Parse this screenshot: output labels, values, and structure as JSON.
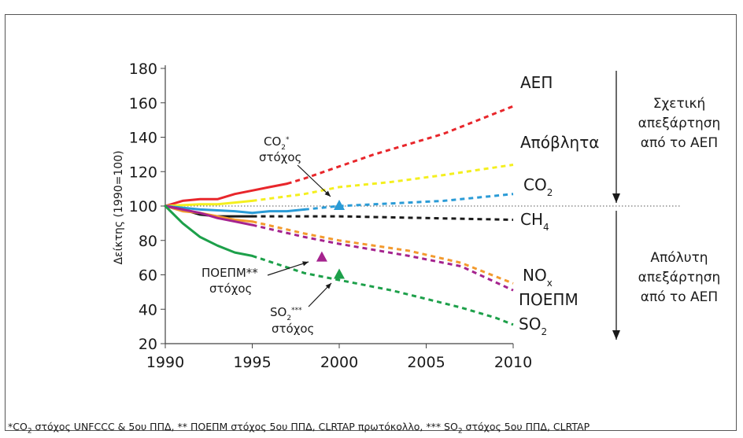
{
  "chart_data": {
    "type": "line",
    "ylabel": "Δείκτης (1990=100)",
    "xlim": [
      1990,
      2010
    ],
    "ylim": [
      20,
      180
    ],
    "x_ticks": [
      "1990",
      "1995",
      "2000",
      "2005",
      "2010"
    ],
    "y_ticks": [
      "20",
      "40",
      "60",
      "80",
      "100",
      "120",
      "140",
      "160",
      "180"
    ],
    "reference_line": {
      "y": 100,
      "style": "dotted"
    },
    "series": [
      {
        "name": "ΑΕΠ",
        "sub": "",
        "color": "#e8262b",
        "points": [
          [
            1990,
            100
          ],
          [
            1991,
            103
          ],
          [
            1992,
            104
          ],
          [
            1993,
            104
          ],
          [
            1994,
            107
          ],
          [
            1995,
            109
          ],
          [
            1996,
            111
          ],
          [
            1997,
            113
          ]
        ],
        "projection": [
          [
            1997,
            113
          ],
          [
            1998,
            116
          ],
          [
            2000,
            123
          ],
          [
            2002,
            130
          ],
          [
            2004,
            136
          ],
          [
            2006,
            142
          ],
          [
            2008,
            150
          ],
          [
            2010,
            158
          ]
        ]
      },
      {
        "name": "Απόβλητα",
        "sub": "",
        "color": "#f4ef1f",
        "points": [
          [
            1990,
            100
          ],
          [
            1992,
            101
          ],
          [
            1993,
            101
          ],
          [
            1994,
            102
          ],
          [
            1995,
            103
          ]
        ],
        "projection": [
          [
            1995,
            103
          ],
          [
            1998,
            107
          ],
          [
            2000,
            111
          ],
          [
            2003,
            114
          ],
          [
            2006,
            118
          ],
          [
            2010,
            124
          ]
        ]
      },
      {
        "name": "CO",
        "sub": "2",
        "color": "#2a9bd6",
        "points": [
          [
            1990,
            100
          ],
          [
            1992,
            98
          ],
          [
            1994,
            97
          ],
          [
            1995,
            96
          ],
          [
            1996,
            97
          ],
          [
            1997,
            97
          ],
          [
            1998,
            98
          ]
        ],
        "projection": [
          [
            1998,
            98
          ],
          [
            2000,
            100
          ],
          [
            2002,
            101
          ],
          [
            2004,
            102
          ],
          [
            2006,
            103
          ],
          [
            2008,
            105
          ],
          [
            2010,
            107
          ]
        ]
      },
      {
        "name": "CH",
        "sub": "4",
        "color": "#1a1a1a",
        "points": [
          [
            1990,
            100
          ],
          [
            1991,
            98
          ],
          [
            1992,
            95
          ],
          [
            1993,
            94
          ],
          [
            1994,
            94
          ],
          [
            1995,
            94
          ]
        ],
        "projection": [
          [
            1995,
            94
          ],
          [
            2000,
            94
          ],
          [
            2005,
            93
          ],
          [
            2010,
            92
          ]
        ]
      },
      {
        "name": "NO",
        "sub": "x",
        "color": "#f39a2e",
        "points": [
          [
            1990,
            100
          ],
          [
            1991,
            97
          ],
          [
            1992,
            96
          ],
          [
            1993,
            94
          ],
          [
            1994,
            92
          ],
          [
            1995,
            91
          ]
        ],
        "projection": [
          [
            1995,
            91
          ],
          [
            1998,
            84
          ],
          [
            2000,
            80
          ],
          [
            2004,
            74
          ],
          [
            2007,
            67
          ],
          [
            2010,
            55
          ]
        ]
      },
      {
        "name": "ΠΟΕΠΜ",
        "sub": "",
        "color": "#a5238e",
        "points": [
          [
            1990,
            100
          ],
          [
            1991,
            98
          ],
          [
            1992,
            96
          ],
          [
            1993,
            93
          ],
          [
            1994,
            91
          ],
          [
            1995,
            89
          ]
        ],
        "projection": [
          [
            1995,
            89
          ],
          [
            1998,
            82
          ],
          [
            2000,
            78
          ],
          [
            2004,
            71
          ],
          [
            2007,
            65
          ],
          [
            2010,
            51
          ]
        ]
      },
      {
        "name": "SO",
        "sub": "2",
        "color": "#1da04a",
        "points": [
          [
            1990,
            100
          ],
          [
            1991,
            90
          ],
          [
            1992,
            82
          ],
          [
            1993,
            77
          ],
          [
            1994,
            73
          ],
          [
            1995,
            71
          ]
        ],
        "projection": [
          [
            1995,
            71
          ],
          [
            1998,
            61
          ],
          [
            2000,
            57
          ],
          [
            2003,
            51
          ],
          [
            2005,
            46
          ],
          [
            2007,
            41
          ],
          [
            2009,
            35
          ],
          [
            2010,
            31
          ]
        ]
      }
    ],
    "targets": [
      {
        "name": "CO2 στόχος",
        "x": 2000,
        "y": 100,
        "color": "#2a9bd6"
      },
      {
        "name": "ΠΟΕΠΜ στόχος",
        "x": 1999,
        "y": 70,
        "color": "#a5238e"
      },
      {
        "name": "SO2 στόχος",
        "x": 2000,
        "y": 60,
        "color": "#1da04a"
      }
    ],
    "annotations": {
      "co2_target": {
        "line1": "CO",
        "line1_sub": "2",
        "line1_sup": "*",
        "line2": "στόχος"
      },
      "poepm_target": {
        "line1": "ΠΟΕΠΜ**",
        "line2": "στόχος"
      },
      "so2_target": {
        "line1": "SO",
        "line1_sub": "2",
        "line1_sup": "***",
        "line2": "στόχος"
      },
      "relative": [
        "Σχετική",
        "απεξάρτηση",
        "από το ΑΕΠ"
      ],
      "absolute": [
        "Απόλυτη",
        "απεξάρτηση",
        "από το ΑΕΠ"
      ]
    },
    "footnote": {
      "p1": "*CO",
      "p1_sub": "2",
      "p2": " στόχος UNFCCC & 5ου ΠΠΔ, ** ΠΟΕΠΜ στόχος 5ου ΠΠΔ, CLRTAP  πρωτόκολλο, *** SO",
      "p2_sub": "2",
      "p3": " στόχος 5ου ΠΠΔ, CLRTAP"
    }
  }
}
